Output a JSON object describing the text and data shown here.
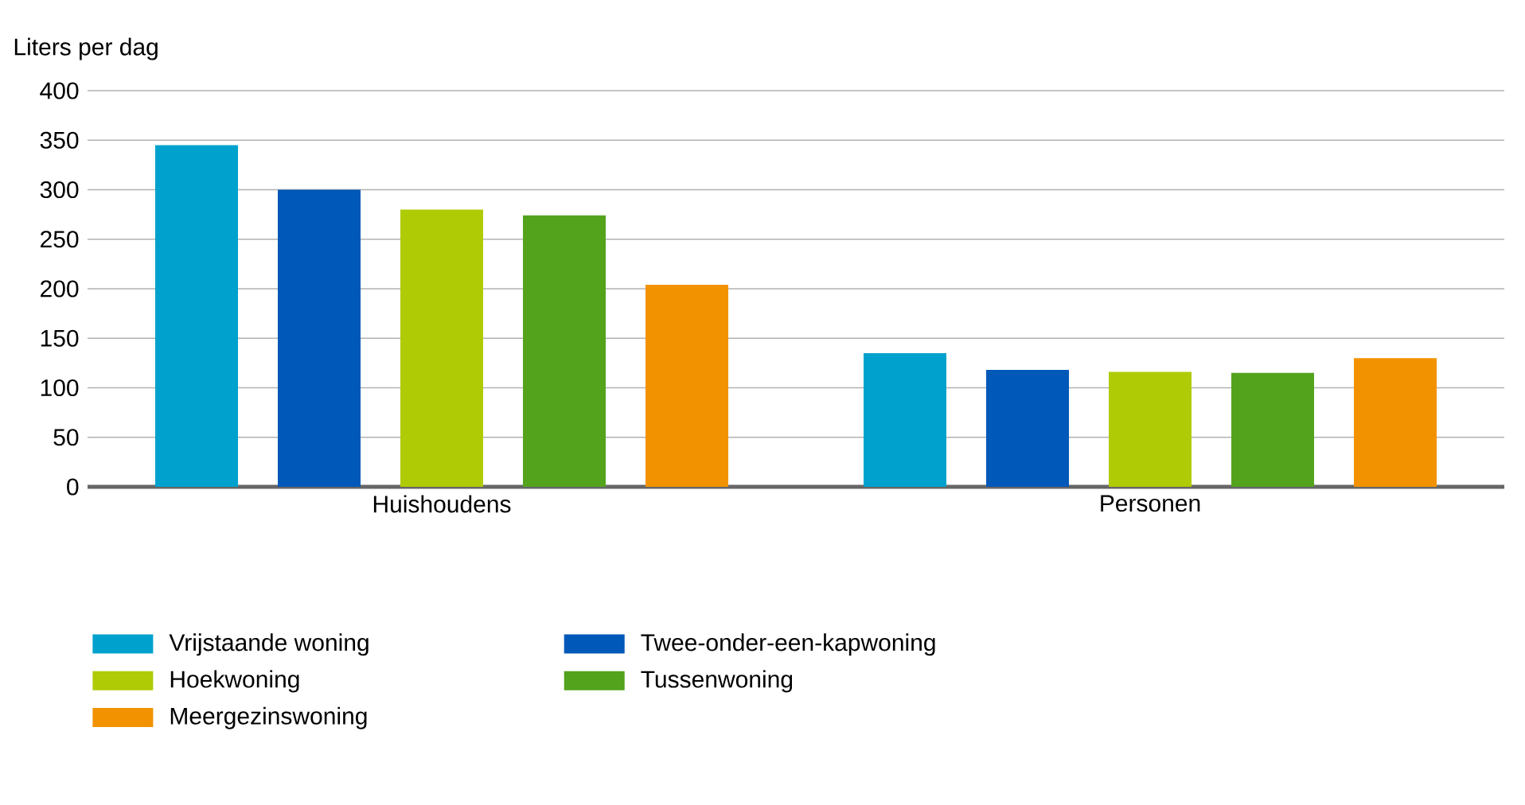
{
  "chart_data": {
    "type": "bar",
    "ylabel": "Liters per dag",
    "categories": [
      "Huishoudens",
      "Personen"
    ],
    "series": [
      {
        "name": "Vrijstaande woning",
        "color": "#00a1cd",
        "values": [
          345,
          135
        ]
      },
      {
        "name": "Twee-onder-een-kapwoning",
        "color": "#0058b8",
        "values": [
          300,
          118
        ]
      },
      {
        "name": "Hoekwoning",
        "color": "#afcb05",
        "values": [
          280,
          116
        ]
      },
      {
        "name": "Tussenwoning",
        "color": "#53a31d",
        "values": [
          274,
          115
        ]
      },
      {
        "name": "Meergezinswoning",
        "color": "#f39200",
        "values": [
          204,
          130
        ]
      }
    ],
    "ylim": [
      0,
      400
    ],
    "yticks": [
      0,
      50,
      100,
      150,
      200,
      250,
      300,
      350,
      400
    ],
    "grid": "y",
    "legend": "bottom"
  }
}
